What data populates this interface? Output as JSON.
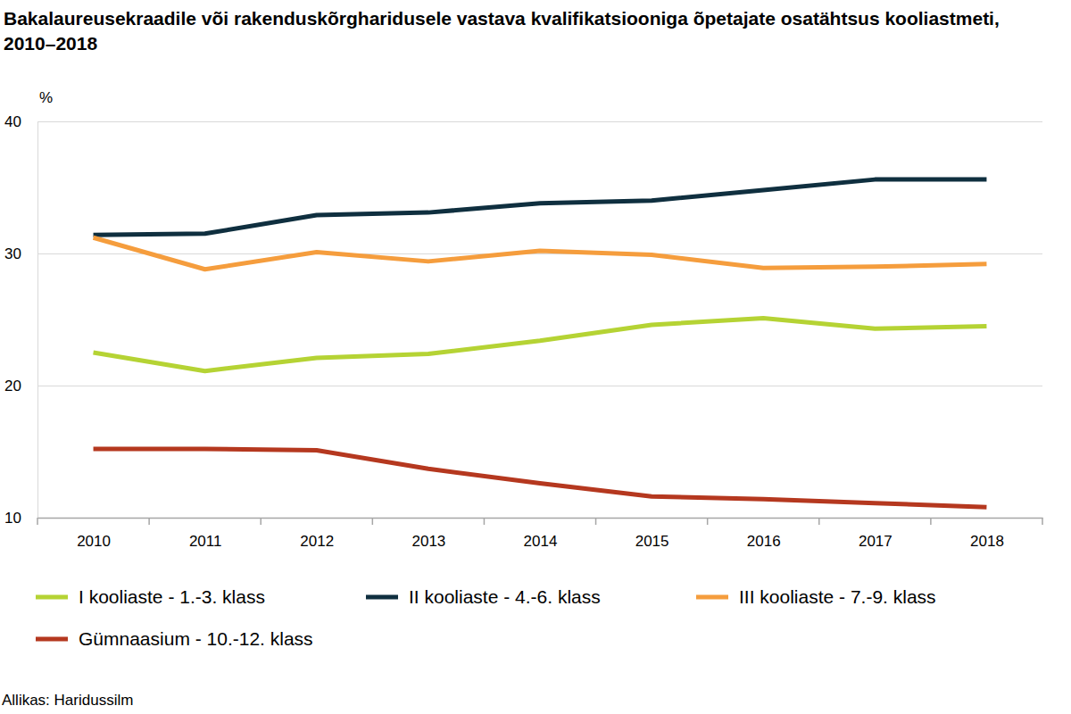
{
  "chart_data": {
    "type": "line",
    "title": "Bakalaureusekraadile või rakenduskõrgharidusele vastava kvalifikatsiooniga õpetajate osatähtsus kooliastmeti, 2010–2018",
    "y_label": "%",
    "source": "Allikas: Haridussilm",
    "categories": [
      "2010",
      "2011",
      "2012",
      "2013",
      "2014",
      "2015",
      "2016",
      "2017",
      "2018"
    ],
    "series": [
      {
        "name": "I kooliaste - 1.-3. klass",
        "color": "#b5d334",
        "values": [
          22.5,
          21.1,
          22.1,
          22.4,
          23.4,
          24.6,
          25.1,
          24.3,
          24.5
        ]
      },
      {
        "name": "II kooliaste - 4.-6. klass",
        "color": "#0f2f3f",
        "values": [
          31.4,
          31.5,
          32.9,
          33.1,
          33.8,
          34.0,
          34.8,
          35.6,
          35.6
        ]
      },
      {
        "name": "III kooliaste - 7.-9. klass",
        "color": "#f59d3d",
        "values": [
          31.2,
          28.8,
          30.1,
          29.4,
          30.2,
          29.9,
          28.9,
          29.0,
          29.2
        ]
      },
      {
        "name": "Gümnaasium - 10.-12. klass",
        "color": "#b5381f",
        "values": [
          15.2,
          15.2,
          15.1,
          13.7,
          12.6,
          11.6,
          11.4,
          11.1,
          10.8
        ]
      }
    ],
    "ylim": [
      10,
      40
    ],
    "yticks": [
      10,
      20,
      30,
      40
    ],
    "grid": true,
    "legend": "bottom"
  }
}
